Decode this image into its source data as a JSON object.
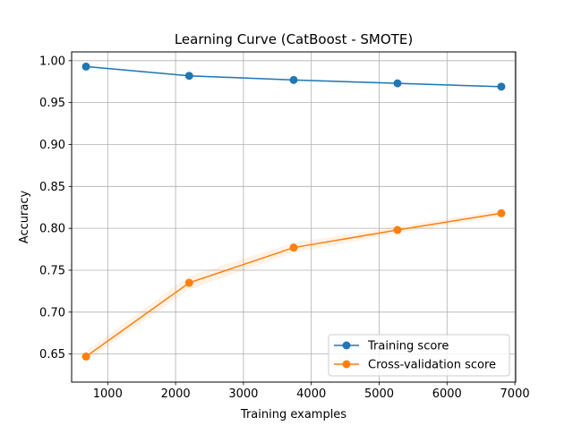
{
  "chart_data": {
    "type": "line",
    "title": "Learning Curve (CatBoost - SMOTE)",
    "xlabel": "Training examples",
    "ylabel": "Accuracy",
    "xlim": [
      468,
      7012
    ],
    "ylim": [
      0.6165,
      1.0105
    ],
    "xticks": [
      1000,
      2000,
      3000,
      4000,
      5000,
      6000,
      7000
    ],
    "yticks": [
      0.65,
      0.7,
      0.75,
      0.8,
      0.85,
      0.9,
      0.95,
      1.0
    ],
    "grid": true,
    "legend_position": "lower-right",
    "x": [
      680,
      2200,
      3740,
      5270,
      6800
    ],
    "series": [
      {
        "name": "Training score",
        "color": "#1f77b4",
        "values": [
          0.993,
          0.982,
          0.977,
          0.973,
          0.969
        ],
        "band": [
          0.001,
          0.001,
          0.001,
          0.001,
          0.001
        ]
      },
      {
        "name": "Cross-validation score",
        "color": "#ff7f0e",
        "values": [
          0.647,
          0.735,
          0.777,
          0.798,
          0.818
        ],
        "band": [
          0.006,
          0.008,
          0.006,
          0.004,
          0.004
        ]
      }
    ]
  }
}
